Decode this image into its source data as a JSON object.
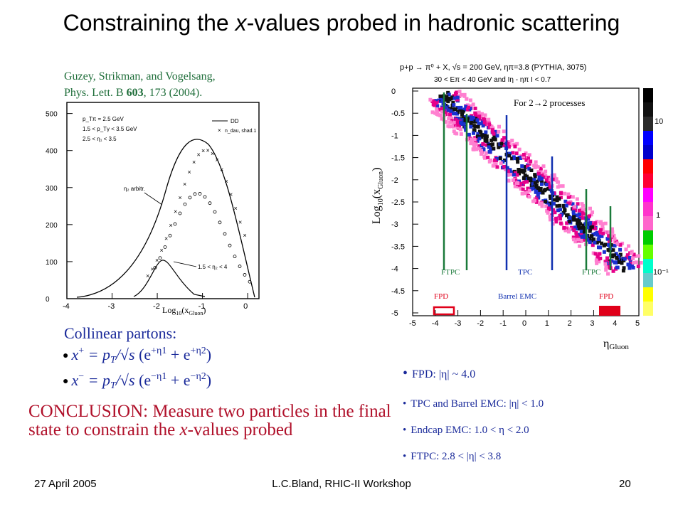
{
  "title_parts": {
    "pre": "Constraining the ",
    "var": "x",
    "post": "-values probed in hadronic scattering"
  },
  "citation": {
    "line1": "Guzey, Strikman, and Vogelsang,",
    "line2_pre": "Phys. Lett. B ",
    "line2_vol": "603",
    "line2_post": ", 173 (2004)."
  },
  "left_plot": {
    "legend": [
      "p_Tπ = 2.5 GeV",
      "1.5 < p_Tγ < 3.5 GeV",
      "2.5 < η₁ < 3.5"
    ],
    "legend_right": [
      "DD",
      "n_dau, shad.1"
    ],
    "annotations": [
      "η₂ arbitr.",
      "1.5 < η₂ < 4"
    ],
    "xlabel": "Log10(xGluon)",
    "x_ticks": [
      "-4",
      "-3",
      "-2",
      "-1",
      "0"
    ],
    "y_ticks": [
      "0",
      "100",
      "200",
      "300",
      "400",
      "500"
    ]
  },
  "right_plot": {
    "header1": "p+p → π⁰ + X, √s = 200 GeV, ηπ=3.8 (PYTHIA, 3075)",
    "header2": "30 < Eπ < 40 GeV and Iη - ηπ I < 0.7",
    "subtitle": "For 2→2 processes",
    "ylabel": "Log10(xGluon)",
    "xlabel": "ηGluon",
    "x_ticks": [
      "-5",
      "-4",
      "-3",
      "-2",
      "-1",
      "0",
      "1",
      "2",
      "3",
      "4",
      "5"
    ],
    "y_ticks": [
      "0",
      "-0.5",
      "-1",
      "-1.5",
      "-2",
      "-2.5",
      "-3",
      "-3.5",
      "-4",
      "-4.5",
      "-5"
    ],
    "colorbar_labels": [
      "10",
      "1",
      "10⁻¹"
    ],
    "labels": {
      "ftpc_left": "FTPC",
      "tpc": "TPC",
      "ftpc_right": "FTPC",
      "fpd_left": "FPD",
      "barrel": "Barrel EMC",
      "fpd_right": "FPD"
    }
  },
  "collinear": {
    "heading": "Collinear partons:",
    "eq1": "x⁺ = p_T/√s (e^{+η1} + e^{+η2})",
    "eq2": "x⁻ = p_T/√s (e^{−η1} + e^{−η2})"
  },
  "conclusion_parts": {
    "pre": "CONCLUSION:  Measure two particles in the final state to constrain the ",
    "var": "x",
    "post": "-values probed"
  },
  "bullets": [
    "FPD: |η| ~ 4.0",
    "TPC and Barrel EMC: |η| < 1.0",
    "Endcap EMC:  1.0 < η < 2.0",
    "FTPC: 2.8 < |η| < 3.8"
  ],
  "footer": {
    "date": "27 April 2005",
    "center": "L.C.Bland, RHIC-II Workshop",
    "page": "20"
  }
}
